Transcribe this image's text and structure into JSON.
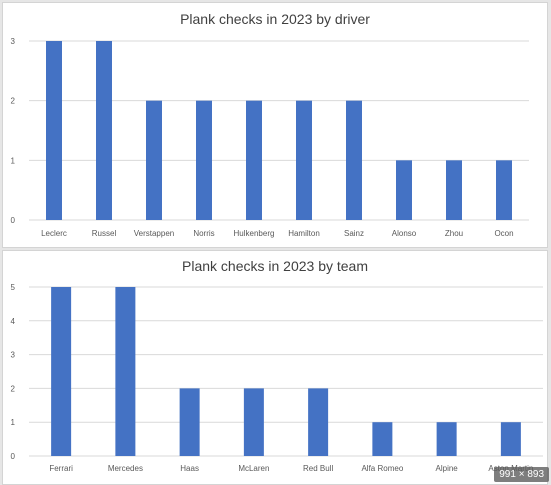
{
  "colors": {
    "bar": "#4472c4",
    "grid": "#d9d9d9",
    "axis_text": "#595959"
  },
  "badge_text": "991 × 893",
  "chart_data": [
    {
      "type": "bar",
      "title": "Plank checks in 2023 by driver",
      "xlabel": "",
      "ylabel": "",
      "ylim": [
        0,
        3
      ],
      "yticks": [
        0,
        1,
        2,
        3
      ],
      "grid": true,
      "legend": "none",
      "categories": [
        "Leclerc",
        "Russel",
        "Verstappen",
        "Norris",
        "Hulkenberg",
        "Hamilton",
        "Sainz",
        "Alonso",
        "Zhou",
        "Ocon"
      ],
      "values": [
        3,
        3,
        2,
        2,
        2,
        2,
        2,
        1,
        1,
        1
      ]
    },
    {
      "type": "bar",
      "title": "Plank checks in 2023 by team",
      "xlabel": "",
      "ylabel": "",
      "ylim": [
        0,
        5
      ],
      "yticks": [
        0,
        1,
        2,
        3,
        4,
        5
      ],
      "grid": true,
      "legend": "none",
      "categories": [
        "Ferrari",
        "Mercedes",
        "Haas",
        "McLaren",
        "Red Bull",
        "Alfa Romeo",
        "Alpine",
        "Aston Martin"
      ],
      "values": [
        5,
        5,
        2,
        2,
        2,
        1,
        1,
        1
      ]
    }
  ]
}
